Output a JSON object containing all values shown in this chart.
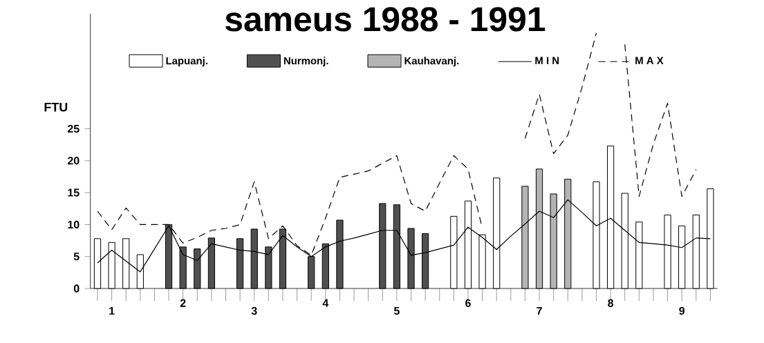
{
  "chart_data": {
    "type": "bar",
    "title": "sameus 1988 - 1991",
    "ylabel": "FTU",
    "categories": [
      null,
      "1",
      null,
      null,
      null,
      null,
      "2",
      null,
      null,
      null,
      null,
      "3",
      null,
      null,
      null,
      null,
      "4",
      null,
      null,
      null,
      null,
      "5",
      null,
      null,
      null,
      null,
      "6",
      null,
      null,
      null,
      null,
      "7",
      null,
      null,
      null,
      null,
      "8",
      null,
      null,
      null,
      null,
      "9",
      null,
      null
    ],
    "series": [
      {
        "name": "Lapuanj.",
        "color": "#ffffff",
        "values": [
          7.8,
          7.2,
          7.8,
          5.3,
          null,
          null,
          null,
          null,
          null,
          null,
          null,
          null,
          null,
          null,
          null,
          null,
          null,
          null,
          null,
          null,
          null,
          null,
          null,
          null,
          null,
          11.3,
          13.7,
          8.4,
          17.3,
          null,
          null,
          null,
          null,
          null,
          null,
          16.7,
          22.3,
          14.9,
          10.4,
          null,
          11.5,
          9.8,
          11.5,
          15.6
        ]
      },
      {
        "name": "Nurmonj.",
        "color": "#505050",
        "values": [
          null,
          null,
          null,
          null,
          null,
          10.0,
          6.5,
          6.2,
          7.9,
          null,
          7.8,
          9.3,
          6.5,
          9.3,
          null,
          5.0,
          7.0,
          10.7,
          null,
          null,
          13.3,
          13.1,
          9.4,
          8.6,
          null,
          null,
          null,
          null,
          null,
          null,
          null,
          null,
          null,
          null,
          null,
          null,
          null,
          null,
          null,
          null,
          null,
          null,
          null,
          null
        ]
      },
      {
        "name": "Kauhavanj.",
        "color": "#b4b4b4",
        "values": [
          null,
          null,
          null,
          null,
          null,
          null,
          null,
          null,
          null,
          null,
          null,
          null,
          null,
          null,
          null,
          null,
          null,
          null,
          null,
          null,
          null,
          null,
          null,
          null,
          null,
          null,
          null,
          null,
          null,
          null,
          16.0,
          18.7,
          14.8,
          17.1,
          null,
          null,
          null,
          null,
          null,
          null,
          null,
          null,
          null,
          null
        ]
      },
      {
        "name": "M I N",
        "type": "line",
        "line_style": "solid",
        "color": "#000000",
        "values": [
          4.0,
          6.0,
          4.3,
          2.6,
          6.2,
          9.8,
          5.3,
          4.4,
          7.0,
          6.5,
          6.0,
          5.8,
          5.3,
          8.3,
          6.5,
          5.0,
          6.5,
          7.4,
          7.9,
          8.5,
          9.1,
          9.1,
          5.2,
          5.6,
          6.2,
          6.8,
          9.6,
          8.0,
          6.1,
          8.2,
          10.1,
          12.1,
          11.1,
          13.9,
          11.9,
          9.8,
          11.0,
          9.1,
          7.2,
          7.0,
          6.8,
          6.4,
          7.9,
          7.8
        ]
      },
      {
        "name": "M A X",
        "type": "line",
        "line_style": "dashed",
        "color": "#000000",
        "values": [
          12.1,
          9.2,
          12.6,
          10.0,
          10.0,
          10.0,
          7.1,
          8.0,
          9.1,
          9.4,
          10.0,
          16.7,
          7.8,
          9.8,
          6.7,
          5.2,
          11.0,
          17.4,
          17.9,
          18.4,
          19.6,
          20.8,
          13.3,
          12.1,
          16.5,
          20.8,
          18.7,
          9.4,
          null,
          null,
          23.5,
          30.4,
          21.1,
          24.0,
          31.5,
          40.0,
          null,
          38.2,
          14.4,
          22.6,
          29.0,
          14.4,
          18.6,
          null
        ]
      }
    ],
    "ylim": [
      0,
      43
    ],
    "yticks": [
      0,
      5,
      10,
      15,
      20,
      25
    ],
    "legend": "top",
    "marker": "none",
    "grid": false
  }
}
